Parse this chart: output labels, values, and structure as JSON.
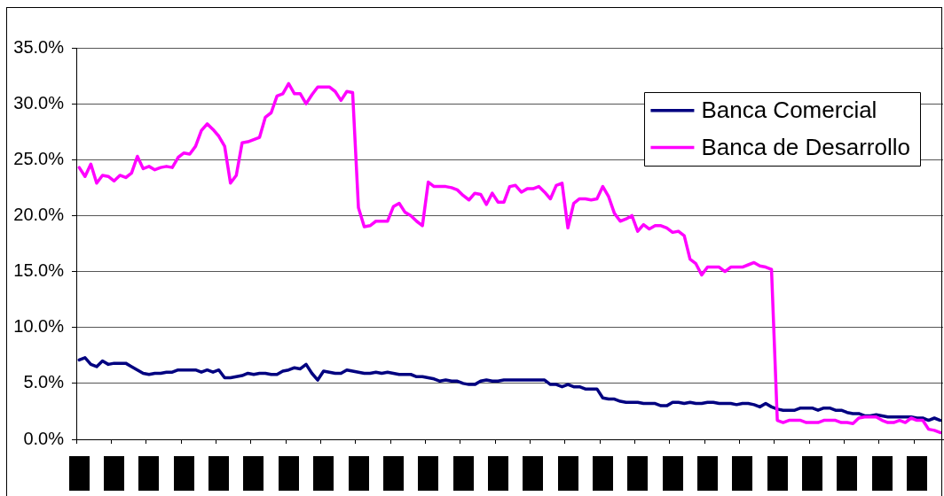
{
  "chart_data": {
    "type": "line",
    "categories": [
      null,
      null,
      null,
      null,
      null,
      null,
      null,
      null,
      null,
      null,
      null,
      null,
      null,
      null,
      null,
      null,
      null,
      null,
      null,
      null,
      null,
      null,
      null,
      null,
      null,
      null,
      null,
      null,
      null,
      null,
      null,
      null,
      null,
      null,
      null,
      null,
      null,
      null,
      null,
      null,
      null,
      null,
      null,
      null,
      null,
      null,
      null,
      null,
      null,
      null,
      null,
      null,
      null,
      null,
      null,
      null,
      null,
      null,
      null,
      null,
      null,
      null,
      null,
      null,
      null,
      null,
      null,
      null,
      null,
      null,
      null,
      null,
      null,
      null,
      null,
      null,
      null,
      null,
      null,
      null,
      null,
      null,
      null,
      null,
      null,
      null,
      null,
      null,
      null,
      null,
      null,
      null,
      null,
      null,
      null,
      null,
      null,
      null,
      null,
      null,
      null,
      null,
      null,
      null,
      null,
      null,
      null,
      null,
      null,
      null,
      null,
      null,
      null,
      null,
      null,
      null,
      null,
      null,
      null,
      null,
      null,
      null,
      null,
      null,
      null,
      null,
      null,
      null,
      null,
      null,
      null,
      null,
      null,
      null,
      null,
      null,
      null,
      null,
      null,
      null,
      null,
      null,
      null,
      null,
      null,
      null,
      null,
      null,
      null
    ],
    "series": [
      {
        "name": "Banca Comercial",
        "color": "#000080",
        "values": [
          7.1,
          7.3,
          6.7,
          6.5,
          7.0,
          6.7,
          6.8,
          6.8,
          6.8,
          6.5,
          6.2,
          5.9,
          5.8,
          5.9,
          5.9,
          6.0,
          6.0,
          6.2,
          6.2,
          6.2,
          6.2,
          6.0,
          6.2,
          6.0,
          6.2,
          5.5,
          5.5,
          5.6,
          5.7,
          5.9,
          5.8,
          5.9,
          5.9,
          5.8,
          5.8,
          6.1,
          6.2,
          6.4,
          6.3,
          6.7,
          5.9,
          5.3,
          6.1,
          6.0,
          5.9,
          5.9,
          6.2,
          6.1,
          6.0,
          5.9,
          5.9,
          6.0,
          5.9,
          6.0,
          5.9,
          5.8,
          5.8,
          5.8,
          5.6,
          5.6,
          5.5,
          5.4,
          5.2,
          5.3,
          5.2,
          5.2,
          5.0,
          4.9,
          4.9,
          5.2,
          5.3,
          5.2,
          5.2,
          5.3,
          5.3,
          5.3,
          5.3,
          5.3,
          5.3,
          5.3,
          5.3,
          4.9,
          4.9,
          4.7,
          4.9,
          4.7,
          4.7,
          4.5,
          4.5,
          4.5,
          3.7,
          3.6,
          3.6,
          3.4,
          3.3,
          3.3,
          3.3,
          3.2,
          3.2,
          3.2,
          3.0,
          3.0,
          3.3,
          3.3,
          3.2,
          3.3,
          3.2,
          3.2,
          3.3,
          3.3,
          3.2,
          3.2,
          3.2,
          3.1,
          3.2,
          3.2,
          3.1,
          2.9,
          3.2,
          2.9,
          2.7,
          2.6,
          2.6,
          2.6,
          2.8,
          2.8,
          2.8,
          2.6,
          2.8,
          2.8,
          2.6,
          2.6,
          2.4,
          2.3,
          2.3,
          2.1,
          2.1,
          2.2,
          2.1,
          2.0,
          2.0,
          2.0,
          2.0,
          2.0,
          1.9,
          1.9,
          1.7,
          1.9,
          1.7
        ]
      },
      {
        "name": "Banca de Desarrollo",
        "color": "#ff00ff",
        "values": [
          24.3,
          23.5,
          24.6,
          22.9,
          23.6,
          23.5,
          23.1,
          23.6,
          23.4,
          23.8,
          25.3,
          24.2,
          24.4,
          24.1,
          24.3,
          24.4,
          24.3,
          25.2,
          25.6,
          25.5,
          26.2,
          27.6,
          28.2,
          27.7,
          27.1,
          26.2,
          22.9,
          23.6,
          26.5,
          26.6,
          26.8,
          27.0,
          28.8,
          29.2,
          30.7,
          30.9,
          31.8,
          30.9,
          30.9,
          30.0,
          30.8,
          31.5,
          31.5,
          31.5,
          31.1,
          30.3,
          31.1,
          31.0,
          20.7,
          19.0,
          19.1,
          19.5,
          19.5,
          19.5,
          20.8,
          21.1,
          20.3,
          20.0,
          19.5,
          19.1,
          23.0,
          22.6,
          22.6,
          22.6,
          22.5,
          22.3,
          21.8,
          21.4,
          22.0,
          21.9,
          21.0,
          22.0,
          21.2,
          21.2,
          22.6,
          22.7,
          22.1,
          22.4,
          22.4,
          22.6,
          22.1,
          21.5,
          22.7,
          22.9,
          18.9,
          21.1,
          21.5,
          21.5,
          21.4,
          21.5,
          22.6,
          21.7,
          20.2,
          19.5,
          19.7,
          20.0,
          18.6,
          19.2,
          18.8,
          19.1,
          19.1,
          18.9,
          18.5,
          18.6,
          18.2,
          16.1,
          15.7,
          14.7,
          15.4,
          15.4,
          15.4,
          15.0,
          15.4,
          15.4,
          15.4,
          15.6,
          15.8,
          15.5,
          15.4,
          15.2,
          1.7,
          1.5,
          1.7,
          1.7,
          1.7,
          1.5,
          1.5,
          1.5,
          1.7,
          1.7,
          1.7,
          1.5,
          1.5,
          1.4,
          1.9,
          2.0,
          2.0,
          2.0,
          1.7,
          1.5,
          1.5,
          1.7,
          1.5,
          1.9,
          1.7,
          1.7,
          0.9,
          0.8,
          0.6
        ]
      }
    ],
    "ylim": [
      0,
      35
    ],
    "yticks": [
      {
        "value": 0,
        "label": "0.0%"
      },
      {
        "value": 5,
        "label": "5.0%"
      },
      {
        "value": 10,
        "label": "10.0%"
      },
      {
        "value": 15,
        "label": "15.0%"
      },
      {
        "value": 20,
        "label": "20.0%"
      },
      {
        "value": 25,
        "label": "25.0%"
      },
      {
        "value": 30,
        "label": "30.0%"
      },
      {
        "value": 35,
        "label": "35.0%"
      }
    ],
    "grid": "y",
    "legend": "top right",
    "marker": "none",
    "line_style": "solid",
    "tick_labels": "y"
  }
}
